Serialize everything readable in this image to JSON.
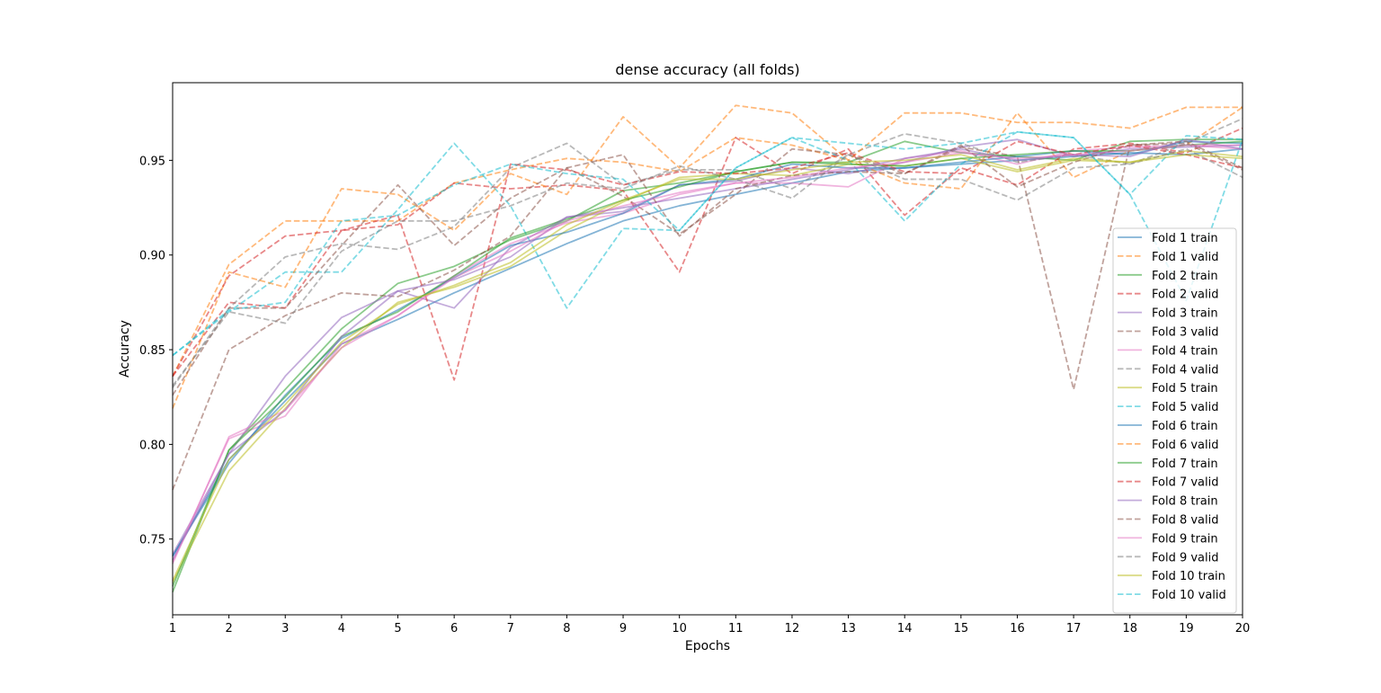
{
  "chart_data": {
    "type": "line",
    "title": "dense accuracy (all folds)",
    "xlabel": "Epochs",
    "ylabel": "Accuracy",
    "xlim": [
      1,
      20
    ],
    "ylim": [
      0.71,
      0.991
    ],
    "xticks": [
      1,
      2,
      3,
      4,
      5,
      6,
      7,
      8,
      9,
      10,
      11,
      12,
      13,
      14,
      15,
      16,
      17,
      18,
      19,
      20
    ],
    "yticks": [
      0.75,
      0.8,
      0.85,
      0.9,
      0.95
    ],
    "ytick_labels": [
      "0.75",
      "0.80",
      "0.85",
      "0.90",
      "0.95"
    ],
    "grid": false,
    "legend_position": "center-right",
    "x": [
      1,
      2,
      3,
      4,
      5,
      6,
      7,
      8,
      9,
      10,
      11,
      12,
      13,
      14,
      15,
      16,
      17,
      18,
      19,
      20
    ],
    "series": [
      {
        "name": "Fold 1 train",
        "style": "solid",
        "color": "#1f77b4",
        "values": [
          0.741,
          0.792,
          0.823,
          0.853,
          0.866,
          0.88,
          0.893,
          0.906,
          0.918,
          0.926,
          0.932,
          0.938,
          0.944,
          0.946,
          0.948,
          0.95,
          0.952,
          0.954,
          0.953,
          0.956
        ]
      },
      {
        "name": "Fold 1 valid",
        "style": "dashed",
        "color": "#ff7f0e",
        "values": [
          0.836,
          0.895,
          0.918,
          0.918,
          0.918,
          0.938,
          0.945,
          0.951,
          0.949,
          0.944,
          0.962,
          0.958,
          0.95,
          0.938,
          0.935,
          0.975,
          0.941,
          0.955,
          0.958,
          0.978
        ]
      },
      {
        "name": "Fold 2 train",
        "style": "solid",
        "color": "#2ca02c",
        "values": [
          0.722,
          0.797,
          0.829,
          0.861,
          0.885,
          0.894,
          0.908,
          0.918,
          0.934,
          0.938,
          0.944,
          0.949,
          0.949,
          0.96,
          0.954,
          0.952,
          0.95,
          0.96,
          0.961,
          0.961
        ]
      },
      {
        "name": "Fold 2 valid",
        "style": "dashed",
        "color": "#d62728",
        "values": [
          0.836,
          0.875,
          0.872,
          0.913,
          0.916,
          0.938,
          0.935,
          0.937,
          0.934,
          0.891,
          0.962,
          0.943,
          0.956,
          0.921,
          0.946,
          0.937,
          0.956,
          0.959,
          0.954,
          0.967
        ]
      },
      {
        "name": "Fold 3 train",
        "style": "solid",
        "color": "#9467bd",
        "values": [
          0.742,
          0.795,
          0.836,
          0.867,
          0.881,
          0.872,
          0.904,
          0.92,
          0.923,
          0.937,
          0.939,
          0.946,
          0.943,
          0.949,
          0.957,
          0.961,
          0.952,
          0.956,
          0.957,
          0.958
        ]
      },
      {
        "name": "Fold 3 valid",
        "style": "dashed",
        "color": "#8c564b",
        "values": [
          0.776,
          0.85,
          0.868,
          0.88,
          0.878,
          0.892,
          0.91,
          0.946,
          0.931,
          0.911,
          0.932,
          0.956,
          0.953,
          0.943,
          0.957,
          0.952,
          0.829,
          0.958,
          0.959,
          0.945
        ]
      },
      {
        "name": "Fold 4 train",
        "style": "solid",
        "color": "#e377c2",
        "values": [
          0.738,
          0.803,
          0.815,
          0.853,
          0.868,
          0.889,
          0.906,
          0.917,
          0.922,
          0.932,
          0.938,
          0.938,
          0.936,
          0.951,
          0.955,
          0.948,
          0.955,
          0.957,
          0.958,
          0.956
        ]
      },
      {
        "name": "Fold 4 valid",
        "style": "dashed",
        "color": "#7f7f7f",
        "values": [
          0.83,
          0.872,
          0.899,
          0.906,
          0.903,
          0.915,
          0.946,
          0.959,
          0.937,
          0.945,
          0.945,
          0.935,
          0.953,
          0.964,
          0.959,
          0.949,
          0.953,
          0.948,
          0.959,
          0.972
        ]
      },
      {
        "name": "Fold 5 train",
        "style": "solid",
        "color": "#bcbd22",
        "values": [
          0.727,
          0.786,
          0.819,
          0.851,
          0.875,
          0.883,
          0.894,
          0.913,
          0.928,
          0.941,
          0.943,
          0.942,
          0.948,
          0.947,
          0.951,
          0.944,
          0.95,
          0.949,
          0.955,
          0.952
        ]
      },
      {
        "name": "Fold 5 valid",
        "style": "dashed",
        "color": "#17becf",
        "values": [
          0.847,
          0.87,
          0.891,
          0.891,
          0.924,
          0.959,
          0.926,
          0.872,
          0.914,
          0.913,
          0.946,
          0.962,
          0.95,
          0.918,
          0.948,
          0.965,
          0.962,
          0.932,
          0.963,
          0.961
        ]
      },
      {
        "name": "Fold 6 train",
        "style": "solid",
        "color": "#1f77b4",
        "values": [
          0.741,
          0.79,
          0.826,
          0.856,
          0.871,
          0.888,
          0.905,
          0.912,
          0.922,
          0.937,
          0.94,
          0.948,
          0.946,
          0.946,
          0.949,
          0.952,
          0.955,
          0.953,
          0.96,
          0.959
        ]
      },
      {
        "name": "Fold 6 valid",
        "style": "dashed",
        "color": "#ff7f0e",
        "values": [
          0.819,
          0.891,
          0.883,
          0.935,
          0.932,
          0.913,
          0.943,
          0.932,
          0.973,
          0.946,
          0.979,
          0.975,
          0.95,
          0.975,
          0.975,
          0.97,
          0.97,
          0.967,
          0.978,
          0.978
        ]
      },
      {
        "name": "Fold 7 train",
        "style": "solid",
        "color": "#2ca02c",
        "values": [
          0.725,
          0.797,
          0.825,
          0.857,
          0.87,
          0.889,
          0.909,
          0.919,
          0.929,
          0.936,
          0.944,
          0.949,
          0.948,
          0.947,
          0.951,
          0.953,
          0.955,
          0.955,
          0.958,
          0.96
        ]
      },
      {
        "name": "Fold 7 valid",
        "style": "dashed",
        "color": "#d62728",
        "values": [
          0.836,
          0.889,
          0.91,
          0.913,
          0.921,
          0.834,
          0.948,
          0.945,
          0.937,
          0.944,
          0.943,
          0.946,
          0.954,
          0.944,
          0.943,
          0.96,
          0.953,
          0.958,
          0.953,
          0.946
        ]
      },
      {
        "name": "Fold 8 train",
        "style": "solid",
        "color": "#9467bd",
        "values": [
          0.739,
          0.795,
          0.818,
          0.857,
          0.881,
          0.887,
          0.899,
          0.92,
          0.925,
          0.93,
          0.935,
          0.94,
          0.945,
          0.951,
          0.956,
          0.95,
          0.953,
          0.952,
          0.961,
          0.956
        ]
      },
      {
        "name": "Fold 8 valid",
        "style": "dashed",
        "color": "#8c564b",
        "values": [
          0.826,
          0.872,
          0.872,
          0.905,
          0.937,
          0.905,
          0.93,
          0.946,
          0.953,
          0.91,
          0.935,
          0.942,
          0.944,
          0.943,
          0.958,
          0.936,
          0.949,
          0.958,
          0.96,
          0.946
        ]
      },
      {
        "name": "Fold 9 train",
        "style": "solid",
        "color": "#e377c2",
        "values": [
          0.737,
          0.804,
          0.818,
          0.851,
          0.868,
          0.888,
          0.902,
          0.918,
          0.926,
          0.933,
          0.938,
          0.941,
          0.946,
          0.949,
          0.954,
          0.951,
          0.953,
          0.955,
          0.958,
          0.958
        ]
      },
      {
        "name": "Fold 9 valid",
        "style": "dashed",
        "color": "#7f7f7f",
        "values": [
          0.831,
          0.87,
          0.864,
          0.902,
          0.918,
          0.918,
          0.926,
          0.938,
          0.935,
          0.947,
          0.94,
          0.93,
          0.953,
          0.94,
          0.94,
          0.929,
          0.946,
          0.948,
          0.956,
          0.941
        ]
      },
      {
        "name": "Fold 10 train",
        "style": "solid",
        "color": "#bcbd22",
        "values": [
          0.728,
          0.792,
          0.821,
          0.854,
          0.874,
          0.884,
          0.896,
          0.916,
          0.929,
          0.94,
          0.94,
          0.945,
          0.949,
          0.95,
          0.953,
          0.945,
          0.951,
          0.949,
          0.953,
          0.951
        ]
      },
      {
        "name": "Fold 10 valid",
        "style": "dashed",
        "color": "#17becf",
        "values": [
          0.847,
          0.871,
          0.875,
          0.918,
          0.921,
          0.937,
          0.948,
          0.943,
          0.94,
          0.913,
          0.946,
          0.962,
          0.959,
          0.956,
          0.959,
          0.965,
          0.962,
          0.932,
          0.876,
          0.961
        ]
      }
    ]
  }
}
